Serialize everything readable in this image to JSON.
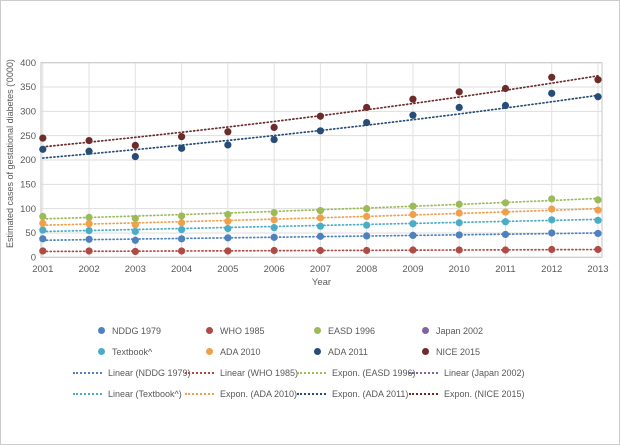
{
  "figure": {
    "ylabel": "Estimated cases of gestational diabetes ('0000)",
    "xlabel": "Year"
  },
  "chart_data": {
    "type": "scatter",
    "title": "",
    "xlabel": "Year",
    "ylabel": "Estimated cases of gestational diabetes ('0000)",
    "x": [
      2001,
      2002,
      2003,
      2004,
      2005,
      2006,
      2007,
      2008,
      2009,
      2010,
      2011,
      2012,
      2013
    ],
    "ylim": [
      0,
      400
    ],
    "yticks": [
      0,
      50,
      100,
      150,
      200,
      250,
      300,
      350,
      400
    ],
    "grid": true,
    "legend_position": "bottom",
    "marker_style": "filled-circle",
    "trendline_style": "dotted",
    "series": [
      {
        "name": "NDDG 1979",
        "color": "#4F81BD",
        "values": [
          38,
          37,
          35,
          38,
          40,
          41,
          43,
          44,
          45,
          46,
          47,
          50,
          49
        ],
        "trend": {
          "type": "linear",
          "label": "Linear (NDDG 1979)",
          "start": 35,
          "end": 50
        }
      },
      {
        "name": "WHO 1985",
        "color": "#B04A45",
        "values": [
          13,
          13,
          12,
          13,
          13,
          14,
          14,
          14,
          15,
          15,
          15,
          16,
          16
        ],
        "trend": {
          "type": "linear",
          "label": "Linear (WHO 1985)",
          "start": 12,
          "end": 16
        }
      },
      {
        "name": "EASD 1996",
        "color": "#9BBB59",
        "values": [
          84,
          82,
          80,
          85,
          88,
          92,
          96,
          100,
          105,
          109,
          112,
          120,
          118
        ],
        "trend": {
          "type": "expon",
          "label": "Expon. (EASD 1996)",
          "start": 79,
          "end": 121
        }
      },
      {
        "name": "Japan 2002",
        "color": "#8064A2",
        "values": null,
        "note": "markers and trendline not visible in plot area (obscured)",
        "trend": {
          "type": "linear",
          "label": "Linear (Japan 2002)",
          "start": null,
          "end": null
        }
      },
      {
        "name": "Textbook^",
        "color": "#4BACC6",
        "values": [
          56,
          55,
          53,
          57,
          59,
          61,
          64,
          66,
          69,
          71,
          73,
          77,
          76
        ],
        "trend": {
          "type": "linear",
          "label": "Linear (Textbook^)",
          "start": 53,
          "end": 78
        }
      },
      {
        "name": "ADA 2010",
        "color": "#F0A04B",
        "values": [
          70,
          69,
          67,
          71,
          74,
          77,
          81,
          84,
          88,
          91,
          93,
          99,
          97
        ],
        "trend": {
          "type": "expon",
          "label": "Expon. (ADA 2010)",
          "start": 66,
          "end": 100
        }
      },
      {
        "name": "ADA 2011",
        "color": "#264C77",
        "values": [
          222,
          218,
          207,
          224,
          231,
          242,
          260,
          277,
          292,
          308,
          312,
          337,
          330
        ],
        "trend": {
          "type": "expon",
          "label": "Expon. (ADA 2011)",
          "start": 204,
          "end": 333
        }
      },
      {
        "name": "NICE 2015",
        "color": "#6B2C2A",
        "values": [
          245,
          240,
          230,
          248,
          258,
          267,
          290,
          308,
          325,
          340,
          347,
          370,
          365
        ],
        "trend": {
          "type": "expon",
          "label": "Expon. (NICE 2015)",
          "start": 227,
          "end": 373
        }
      }
    ]
  }
}
